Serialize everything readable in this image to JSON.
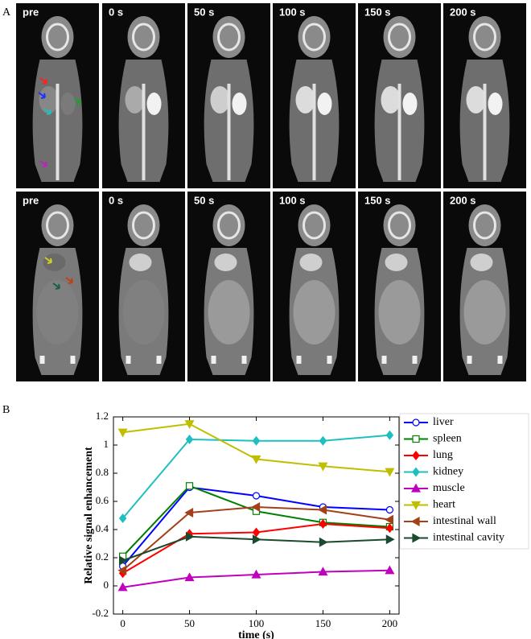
{
  "panel_a": {
    "label": "A",
    "time_labels": [
      "pre",
      "0 s",
      "50 s",
      "100 s",
      "150 s",
      "200 s"
    ]
  },
  "panel_b_label": "B",
  "chart_data": {
    "type": "line",
    "x_label": "time (s)",
    "y_label": "Relative signal enhancement",
    "x": [
      0,
      50,
      100,
      150,
      200
    ],
    "xlim": [
      -7,
      207
    ],
    "xticks": [
      0,
      50,
      100,
      150,
      200
    ],
    "ylim": [
      -0.2,
      1.2
    ],
    "yticks": [
      -0.2,
      0,
      0.2,
      0.4,
      0.6,
      0.8,
      1,
      1.2
    ],
    "grid": false,
    "legend": "outside-right",
    "series": [
      {
        "name": "liver",
        "color": "#0000ff",
        "marker": "circle",
        "filled": false,
        "values": [
          0.14,
          0.7,
          0.64,
          0.56,
          0.54
        ]
      },
      {
        "name": "spleen",
        "color": "#008000",
        "marker": "square",
        "filled": false,
        "values": [
          0.21,
          0.71,
          0.53,
          0.45,
          0.42
        ]
      },
      {
        "name": "lung",
        "color": "#ff0000",
        "marker": "diamond",
        "filled": true,
        "values": [
          0.09,
          0.37,
          0.38,
          0.44,
          0.41
        ]
      },
      {
        "name": "kidney",
        "color": "#1fbfbf",
        "marker": "diamond",
        "filled": true,
        "values": [
          0.48,
          1.04,
          1.03,
          1.03,
          1.07
        ]
      },
      {
        "name": "muscle",
        "color": "#bf00bf",
        "marker": "triangle-up",
        "filled": true,
        "values": [
          -0.01,
          0.06,
          0.08,
          0.1,
          0.11
        ]
      },
      {
        "name": "heart",
        "color": "#bfbf00",
        "marker": "triangle-down",
        "filled": true,
        "values": [
          1.09,
          1.15,
          0.9,
          0.85,
          0.81
        ]
      },
      {
        "name": "intestinal wall",
        "color": "#a3401a",
        "marker": "triangle-left",
        "filled": true,
        "values": [
          0.11,
          0.52,
          0.56,
          0.54,
          0.47
        ]
      },
      {
        "name": "intestinal cavity",
        "color": "#1b4a2e",
        "marker": "triangle-right",
        "filled": true,
        "values": [
          0.18,
          0.35,
          0.33,
          0.31,
          0.33
        ]
      }
    ]
  }
}
